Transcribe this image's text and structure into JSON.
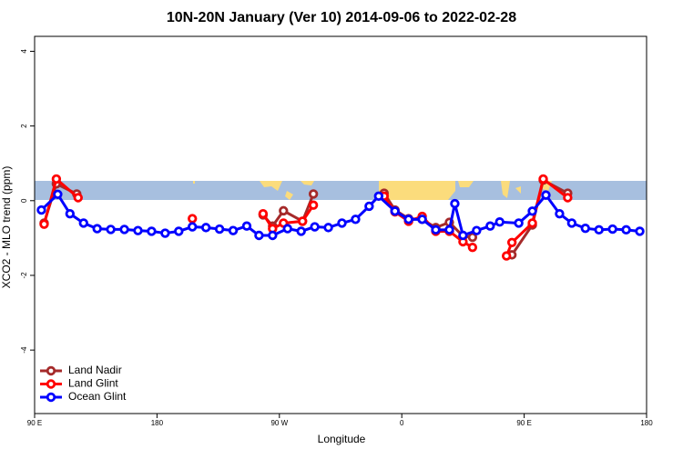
{
  "chart_data": {
    "type": "line",
    "title": "10N-20N January (Ver 10)   2014-09-06 to 2022-02-28",
    "x_label": "Longitude",
    "y_label": "XCO2 - MLO trend (ppm)",
    "xlim": [
      90,
      540
    ],
    "ylim": [
      -5.7,
      4.4
    ],
    "xticks": [
      {
        "value": 90,
        "label": "90 E"
      },
      180,
      {
        "value": 270,
        "label": "90 W"
      },
      {
        "value": 360,
        "label": "0"
      },
      {
        "value": 450,
        "label": "90 E"
      },
      {
        "value": 540,
        "label": "180"
      }
    ],
    "yticks": [
      -4,
      -2,
      0,
      2,
      4
    ],
    "grid": false,
    "legend": "bottom-left",
    "series": [
      {
        "name": "Land Nadir",
        "color": "#a52a2a",
        "x": [
          97,
          106,
          121,
          null,
          258,
          265,
          273,
          287,
          295,
          null,
          347,
          355,
          365,
          375,
          385,
          395,
          405,
          412,
          null,
          441,
          456,
          464,
          482
        ],
        "values": [
          -0.6,
          0.45,
          0.18,
          null,
          -0.38,
          -0.68,
          -0.27,
          -0.55,
          0.18,
          null,
          0.2,
          -0.25,
          -0.48,
          -0.5,
          -0.72,
          -0.58,
          -0.95,
          -0.98,
          null,
          -1.45,
          -0.65,
          0.55,
          0.2
        ]
      },
      {
        "name": "Land Glint",
        "color": "#ff0000",
        "x": [
          97,
          106,
          122,
          null,
          206,
          null,
          258,
          265,
          273,
          287,
          295,
          null,
          347,
          355,
          365,
          375,
          385,
          395,
          405,
          412,
          null,
          437,
          441,
          456,
          464,
          482
        ],
        "values": [
          -0.63,
          0.58,
          0.08,
          null,
          -0.48,
          null,
          -0.35,
          -0.75,
          -0.6,
          -0.55,
          -0.12,
          null,
          0.12,
          -0.3,
          -0.55,
          -0.42,
          -0.82,
          -0.82,
          -1.1,
          -1.25,
          null,
          -1.48,
          -1.12,
          -0.6,
          0.58,
          0.08
        ]
      },
      {
        "name": "Ocean Glint",
        "color": "#0000ff",
        "x": [
          95,
          107,
          116,
          126,
          136,
          146,
          156,
          166,
          176,
          186,
          196,
          206,
          216,
          226,
          236,
          246,
          255,
          265,
          276,
          286,
          296,
          306,
          316,
          326,
          336,
          343,
          355,
          365,
          375,
          385,
          395,
          399,
          405,
          415,
          425,
          432,
          446,
          456,
          466,
          476,
          485,
          495,
          505,
          515,
          525,
          535
        ],
        "values": [
          -0.25,
          0.17,
          -0.35,
          -0.6,
          -0.75,
          -0.77,
          -0.77,
          -0.8,
          -0.82,
          -0.87,
          -0.82,
          -0.7,
          -0.72,
          -0.76,
          -0.8,
          -0.68,
          -0.93,
          -0.93,
          -0.75,
          -0.82,
          -0.7,
          -0.72,
          -0.6,
          -0.5,
          -0.15,
          0.12,
          -0.28,
          -0.5,
          -0.5,
          -0.78,
          -0.78,
          -0.08,
          -0.93,
          -0.8,
          -0.68,
          -0.57,
          -0.6,
          -0.28,
          0.15,
          -0.35,
          -0.6,
          -0.74,
          -0.78,
          -0.76,
          -0.78,
          -0.82
        ]
      }
    ]
  }
}
